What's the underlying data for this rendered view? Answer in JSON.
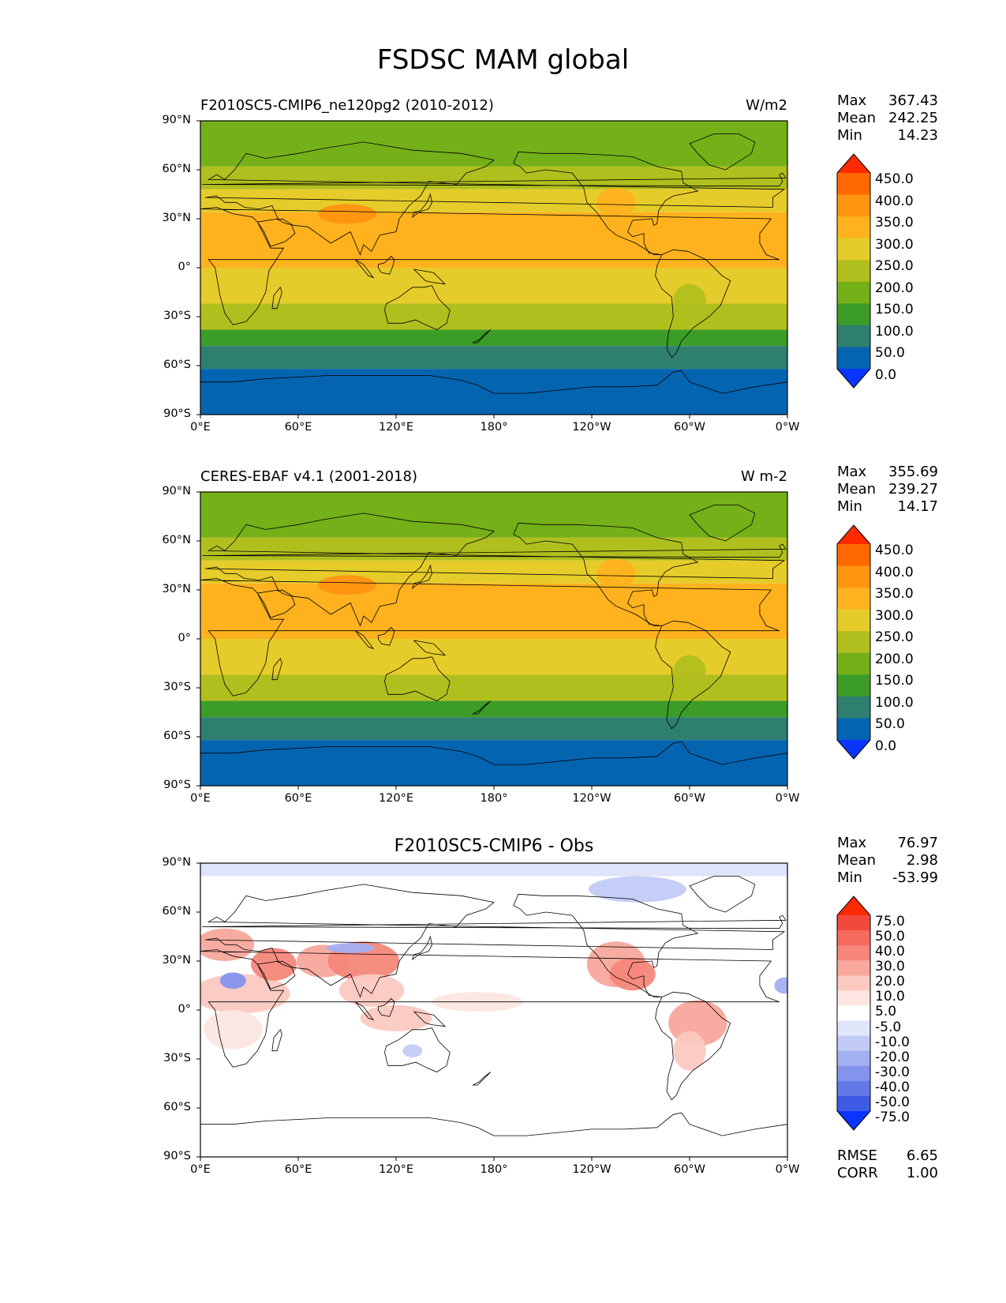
{
  "title": "FSDSC MAM global",
  "panels": [
    {
      "left_title": "F2010SC5-CMIP6_ne120pg2 (2010-2012)",
      "center_title": "",
      "right_title": "W/m2",
      "stats": [
        {
          "label": "Max",
          "value": "367.43"
        },
        {
          "label": "Mean",
          "value": "242.25"
        },
        {
          "label": "Min",
          "value": "14.23"
        }
      ],
      "colorbar": {
        "levels": [
          "450.0",
          "400.0",
          "350.0",
          "300.0",
          "250.0",
          "200.0",
          "150.0",
          "100.0",
          "50.0",
          "0.0"
        ],
        "colors": [
          "#ff2a00",
          "#ff6a00",
          "#ff9410",
          "#ffb21e",
          "#e6cc2a",
          "#b0bf1e",
          "#74b018",
          "#3c9c28",
          "#2f7f6e",
          "#0564b0",
          "#0a34ff"
        ]
      },
      "bands": [
        {
          "lat_top": 90,
          "lat_bot": 62,
          "color": "#74b018"
        },
        {
          "lat_top": 62,
          "lat_bot": 48,
          "color": "#b0bf1e"
        },
        {
          "lat_top": 48,
          "lat_bot": 34,
          "color": "#e6cc2a"
        },
        {
          "lat_top": 34,
          "lat_bot": 0,
          "color": "#ffb21e"
        },
        {
          "lat_top": 0,
          "lat_bot": -22,
          "color": "#e6cc2a"
        },
        {
          "lat_top": -22,
          "lat_bot": -38,
          "color": "#b0bf1e"
        },
        {
          "lat_top": -38,
          "lat_bot": -48,
          "color": "#3c9c28"
        },
        {
          "lat_top": -48,
          "lat_bot": -62,
          "color": "#2f7f6e"
        },
        {
          "lat_top": -62,
          "lat_bot": -90,
          "color": "#0564b0"
        }
      ],
      "footer_stats": []
    },
    {
      "left_title": "CERES-EBAF v4.1 (2001-2018)",
      "center_title": "",
      "right_title": "W m-2",
      "stats": [
        {
          "label": "Max",
          "value": "355.69"
        },
        {
          "label": "Mean",
          "value": "239.27"
        },
        {
          "label": "Min",
          "value": "14.17"
        }
      ],
      "colorbar": {
        "levels": [
          "450.0",
          "400.0",
          "350.0",
          "300.0",
          "250.0",
          "200.0",
          "150.0",
          "100.0",
          "50.0",
          "0.0"
        ],
        "colors": [
          "#ff2a00",
          "#ff6a00",
          "#ff9410",
          "#ffb21e",
          "#e6cc2a",
          "#b0bf1e",
          "#74b018",
          "#3c9c28",
          "#2f7f6e",
          "#0564b0",
          "#0a34ff"
        ]
      },
      "bands": [
        {
          "lat_top": 90,
          "lat_bot": 62,
          "color": "#74b018"
        },
        {
          "lat_top": 62,
          "lat_bot": 48,
          "color": "#b0bf1e"
        },
        {
          "lat_top": 48,
          "lat_bot": 34,
          "color": "#e6cc2a"
        },
        {
          "lat_top": 34,
          "lat_bot": 0,
          "color": "#ffb21e"
        },
        {
          "lat_top": 0,
          "lat_bot": -22,
          "color": "#e6cc2a"
        },
        {
          "lat_top": -22,
          "lat_bot": -38,
          "color": "#b0bf1e"
        },
        {
          "lat_top": -38,
          "lat_bot": -48,
          "color": "#3c9c28"
        },
        {
          "lat_top": -48,
          "lat_bot": -62,
          "color": "#2f7f6e"
        },
        {
          "lat_top": -62,
          "lat_bot": -90,
          "color": "#0564b0"
        }
      ],
      "footer_stats": []
    },
    {
      "left_title": "",
      "center_title": "F2010SC5-CMIP6 - Obs",
      "right_title": "",
      "stats": [
        {
          "label": "Max",
          "value": "76.97"
        },
        {
          "label": "Mean",
          "value": "2.98"
        },
        {
          "label": "Min",
          "value": "-53.99"
        }
      ],
      "colorbar": {
        "levels": [
          "75.0",
          "50.0",
          "40.0",
          "30.0",
          "20.0",
          "10.0",
          "5.0",
          "-5.0",
          "-10.0",
          "-20.0",
          "-30.0",
          "-40.0",
          "-50.0",
          "-75.0"
        ],
        "colors": [
          "#ff2a00",
          "#f2493c",
          "#f46a5c",
          "#f6877a",
          "#f8a89c",
          "#fbc9c0",
          "#fde6e2",
          "#ffffff",
          "#e2e6fb",
          "#c2cbf6",
          "#a3b0f1",
          "#8494ec",
          "#6479e6",
          "#3d5be5",
          "#0a34ff"
        ]
      },
      "bands": [
        {
          "lat_top": 90,
          "lat_bot": 82,
          "color": "#dfe4fb"
        },
        {
          "lat_top": 82,
          "lat_bot": -90,
          "color": "#ffffff"
        }
      ],
      "footer_stats": [
        {
          "label": "RMSE",
          "value": "6.65"
        },
        {
          "label": "CORR",
          "value": "1.00"
        }
      ]
    }
  ],
  "axes": {
    "lat_ticks": [
      "90°N",
      "60°N",
      "30°N",
      "0°",
      "30°S",
      "60°S",
      "90°S"
    ],
    "lon_ticks": [
      "0°E",
      "60°E",
      "120°E",
      "180°",
      "120°W",
      "60°W",
      "0°W"
    ]
  }
}
